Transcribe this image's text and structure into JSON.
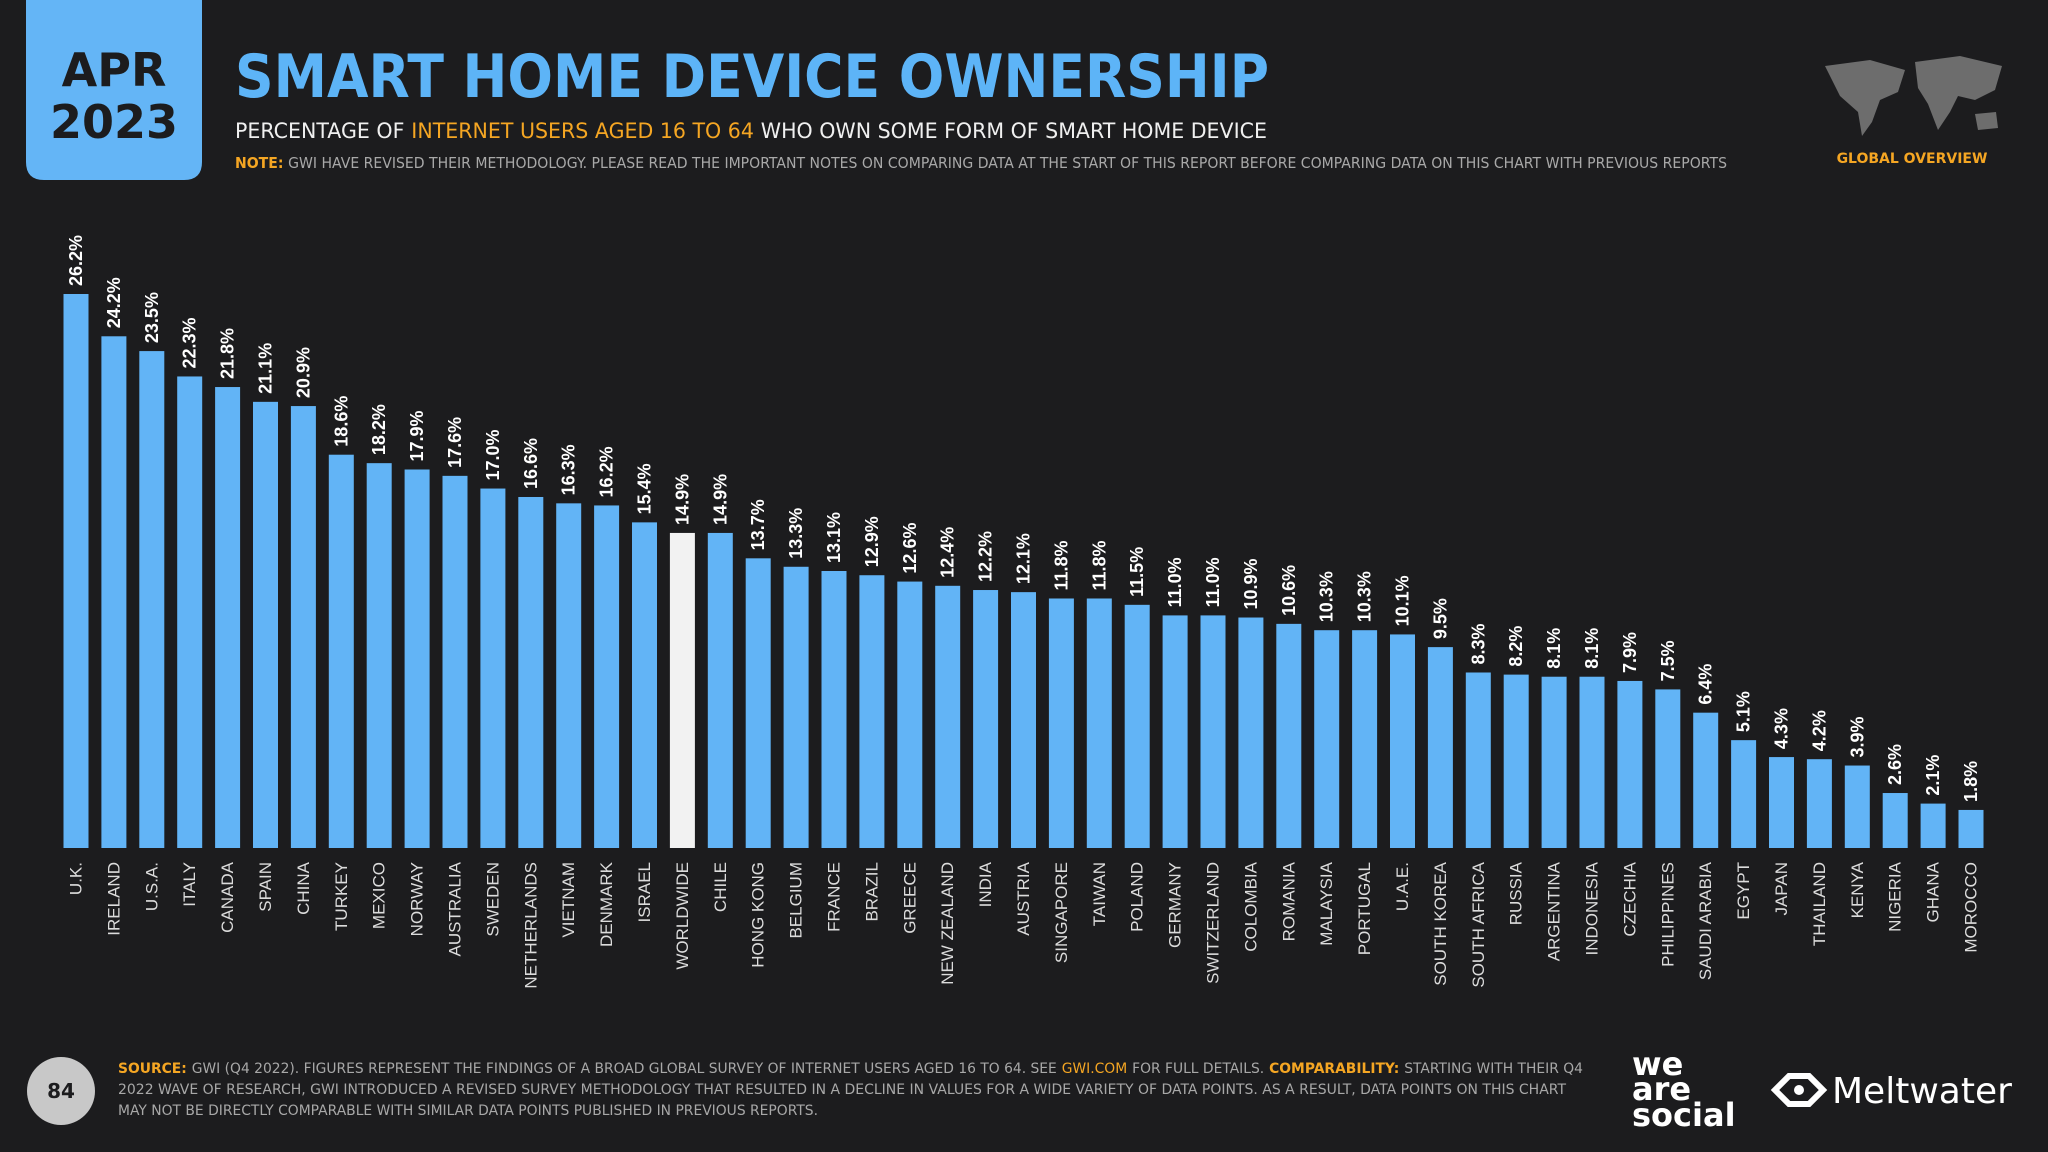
{
  "header": {
    "date_month": "APR",
    "date_year": "2023",
    "region": "GLOBAL OVERVIEW"
  },
  "chart_data": {
    "type": "bar",
    "title": "SMART HOME DEVICE OWNERSHIP",
    "subtitle": {
      "part_1": "PERCENTAGE OF",
      "highlight": "INTERNET USERS AGED 16 TO 64",
      "part_2": "WHO OWN SOME FORM OF SMART HOME DEVICE"
    },
    "note": {
      "label": "NOTE:",
      "text": "GWI HAVE REVISED THEIR METHODOLOGY. PLEASE READ THE IMPORTANT NOTES ON COMPARING DATA AT THE START OF THIS REPORT BEFORE COMPARING DATA ON THIS CHART WITH PREVIOUS REPORTS"
    },
    "categories": [
      "U.K.",
      "IRELAND",
      "U.S.A.",
      "ITALY",
      "CANADA",
      "SPAIN",
      "CHINA",
      "TURKEY",
      "MEXICO",
      "NORWAY",
      "AUSTRALIA",
      "SWEDEN",
      "NETHERLANDS",
      "VIETNAM",
      "DENMARK",
      "ISRAEL",
      "WORLDWIDE",
      "CHILE",
      "HONG KONG",
      "BELGIUM",
      "FRANCE",
      "BRAZIL",
      "GREECE",
      "NEW ZEALAND",
      "INDIA",
      "AUSTRIA",
      "SINGAPORE",
      "TAIWAN",
      "POLAND",
      "GERMANY",
      "SWITZERLAND",
      "COLOMBIA",
      "ROMANIA",
      "MALAYSIA",
      "PORTUGAL",
      "U.A.E.",
      "SOUTH KOREA",
      "SOUTH AFRICA",
      "RUSSIA",
      "ARGENTINA",
      "INDONESIA",
      "CZECHIA",
      "PHILIPPINES",
      "SAUDI ARABIA",
      "EGYPT",
      "JAPAN",
      "THAILAND",
      "KENYA",
      "NIGERIA",
      "GHANA",
      "MOROCCO"
    ],
    "values": [
      26.2,
      24.2,
      23.5,
      22.3,
      21.8,
      21.1,
      20.9,
      18.6,
      18.2,
      17.9,
      17.6,
      17.0,
      16.6,
      16.3,
      16.2,
      15.4,
      14.9,
      14.9,
      13.7,
      13.3,
      13.1,
      12.9,
      12.6,
      12.4,
      12.2,
      12.1,
      11.8,
      11.8,
      11.5,
      11.0,
      11.0,
      10.9,
      10.6,
      10.3,
      10.3,
      10.1,
      9.5,
      8.3,
      8.2,
      8.1,
      8.1,
      7.9,
      7.5,
      6.4,
      5.1,
      4.3,
      4.2,
      3.9,
      2.6,
      2.1,
      1.8
    ],
    "value_labels": [
      "26.2%",
      "24.2%",
      "23.5%",
      "22.3%",
      "21.8%",
      "21.1%",
      "20.9%",
      "18.6%",
      "18.2%",
      "17.9%",
      "17.6%",
      "17.0%",
      "16.6%",
      "16.3%",
      "16.2%",
      "15.4%",
      "14.9%",
      "14.9%",
      "13.7%",
      "13.3%",
      "13.1%",
      "12.9%",
      "12.6%",
      "12.4%",
      "12.2%",
      "12.1%",
      "11.8%",
      "11.8%",
      "11.5%",
      "11.0%",
      "11.0%",
      "10.9%",
      "10.6%",
      "10.3%",
      "10.3%",
      "10.1%",
      "9.5%",
      "8.3%",
      "8.2%",
      "8.1%",
      "8.1%",
      "7.9%",
      "7.5%",
      "6.4%",
      "5.1%",
      "4.3%",
      "4.2%",
      "3.9%",
      "2.6%",
      "2.1%",
      "1.8%"
    ],
    "colors": [
      "#62b4f6",
      "#62b4f6",
      "#62b4f6",
      "#62b4f6",
      "#62b4f6",
      "#62b4f6",
      "#62b4f6",
      "#62b4f6",
      "#62b4f6",
      "#62b4f6",
      "#62b4f6",
      "#62b4f6",
      "#62b4f6",
      "#62b4f6",
      "#62b4f6",
      "#62b4f6",
      "#f2f2f2",
      "#62b4f6",
      "#62b4f6",
      "#62b4f6",
      "#62b4f6",
      "#62b4f6",
      "#62b4f6",
      "#62b4f6",
      "#62b4f6",
      "#62b4f6",
      "#62b4f6",
      "#62b4f6",
      "#62b4f6",
      "#62b4f6",
      "#62b4f6",
      "#62b4f6",
      "#62b4f6",
      "#62b4f6",
      "#62b4f6",
      "#62b4f6",
      "#62b4f6",
      "#62b4f6",
      "#62b4f6",
      "#62b4f6",
      "#62b4f6",
      "#62b4f6",
      "#62b4f6",
      "#62b4f6",
      "#62b4f6",
      "#62b4f6",
      "#62b4f6",
      "#62b4f6",
      "#62b4f6",
      "#62b4f6",
      "#62b4f6"
    ]
  },
  "footer": {
    "page": "84",
    "source_label": "SOURCE:",
    "source_text": "GWI (Q4 2022). FIGURES REPRESENT THE FINDINGS OF A BROAD GLOBAL SURVEY OF INTERNET USERS AGED 16 TO 64. SEE",
    "source_link": "GWI.COM",
    "source_text_2": "FOR FULL DETAILS.",
    "comparability_label": "COMPARABILITY:",
    "comparability_text": "STARTING WITH THEIR Q4",
    "line_2": "2022 WAVE OF RESEARCH, GWI INTRODUCED A REVISED SURVEY METHODOLOGY THAT RESULTED IN A DECLINE IN VALUES FOR A WIDE VARIETY OF DATA POINTS. AS A RESULT, DATA POINTS ON THIS CHART",
    "line_3": "MAY NOT BE DIRECTLY COMPARABLE WITH SIMILAR DATA POINTS PUBLISHED IN PREVIOUS REPORTS.",
    "logo_1": [
      "we",
      "are",
      "social"
    ],
    "logo_2": "Meltwater"
  }
}
